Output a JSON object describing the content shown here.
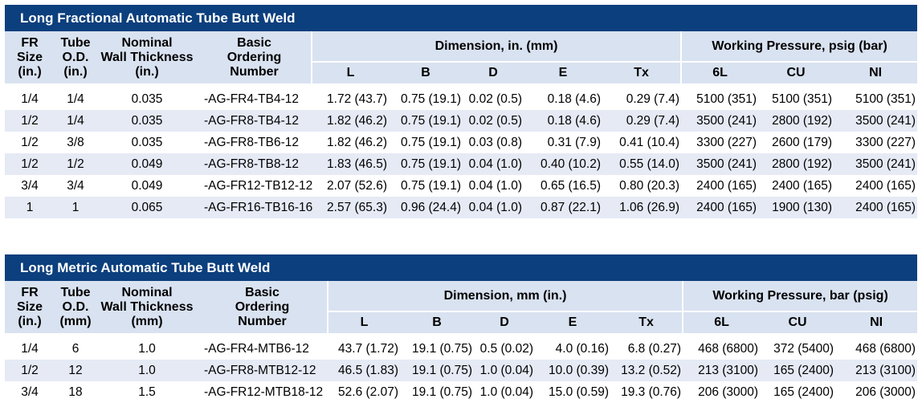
{
  "tables": [
    {
      "title": "Long Fractional Automatic Tube Butt Weld",
      "headers": {
        "fr_size": [
          "FR",
          "Size",
          "(in.)"
        ],
        "tube_od": [
          "Tube",
          "O.D.",
          "(in.)"
        ],
        "wall": [
          "Nominal",
          "Wall Thickness",
          "(in.)"
        ],
        "ordering": [
          "Basic",
          "Ordering",
          "Number"
        ],
        "dimension_group": "Dimension, in. (mm)",
        "pressure_group": "Working Pressure, psig (bar)",
        "dims": [
          "L",
          "B",
          "D",
          "E",
          "Tx"
        ],
        "pressures": [
          "6L",
          "CU",
          "NI"
        ]
      },
      "rows": [
        {
          "fr": "1/4",
          "od": "1/4",
          "wall": "0.035",
          "order": "-AG-FR4-TB4-12",
          "L": "1.72 (43.7)",
          "B": "0.75 (19.1)",
          "D": "0.02 (0.5)",
          "E": "0.18 (4.6)",
          "Tx": "0.29 (7.4)",
          "p6L": "5100 (351)",
          "CU": "5100 (351)",
          "NI": "5100 (351)"
        },
        {
          "fr": "1/2",
          "od": "1/4",
          "wall": "0.035",
          "order": "-AG-FR8-TB4-12",
          "L": "1.82 (46.2)",
          "B": "0.75 (19.1)",
          "D": "0.02 (0.5)",
          "E": "0.18 (4.6)",
          "Tx": "0.29 (7.4)",
          "p6L": "3500 (241)",
          "CU": "2800 (192)",
          "NI": "3500 (241)"
        },
        {
          "fr": "1/2",
          "od": "3/8",
          "wall": "0.035",
          "order": "-AG-FR8-TB6-12",
          "L": "1.82 (46.2)",
          "B": "0.75 (19.1)",
          "D": "0.03 (0.8)",
          "E": "0.31 (7.9)",
          "Tx": "0.41 (10.4)",
          "p6L": "3300 (227)",
          "CU": "2600 (179)",
          "NI": "3300 (227)"
        },
        {
          "fr": "1/2",
          "od": "1/2",
          "wall": "0.049",
          "order": "-AG-FR8-TB8-12",
          "L": "1.83 (46.5)",
          "B": "0.75 (19.1)",
          "D": "0.04 (1.0)",
          "E": "0.40 (10.2)",
          "Tx": "0.55 (14.0)",
          "p6L": "3500 (241)",
          "CU": "2800 (192)",
          "NI": "3500 (241)"
        },
        {
          "fr": "3/4",
          "od": "3/4",
          "wall": "0.049",
          "order": "-AG-FR12-TB12-12",
          "L": "2.07 (52.6)",
          "B": "0.75 (19.1)",
          "D": "0.04 (1.0)",
          "E": "0.65 (16.5)",
          "Tx": "0.80 (20.3)",
          "p6L": "2400 (165)",
          "CU": "2400 (165)",
          "NI": "2400 (165)"
        },
        {
          "fr": "1",
          "od": "1",
          "wall": "0.065",
          "order": "-AG-FR16-TB16-16",
          "L": "2.57 (65.3)",
          "B": "0.96 (24.4)",
          "D": "0.04 (1.0)",
          "E": "0.87 (22.1)",
          "Tx": "1.06 (26.9)",
          "p6L": "2400 (165)",
          "CU": "1900 (130)",
          "NI": "2400 (165)"
        }
      ]
    },
    {
      "title": "Long Metric Automatic Tube Butt Weld",
      "headers": {
        "fr_size": [
          "FR",
          "Size",
          "(in.)"
        ],
        "tube_od": [
          "Tube",
          "O.D.",
          "(mm)"
        ],
        "wall": [
          "Nominal",
          "Wall Thickness",
          "(mm)"
        ],
        "ordering": [
          "Basic",
          "Ordering",
          "Number"
        ],
        "dimension_group": "Dimension, mm (in.)",
        "pressure_group": "Working Pressure, bar (psig)",
        "dims": [
          "L",
          "B",
          "D",
          "E",
          "Tx"
        ],
        "pressures": [
          "6L",
          "CU",
          "NI"
        ]
      },
      "rows": [
        {
          "fr": "1/4",
          "od": "6",
          "wall": "1.0",
          "order": "-AG-FR4-MTB6-12",
          "L": "43.7 (1.72)",
          "B": "19.1 (0.75)",
          "D": "0.5 (0.02)",
          "E": "4.0 (0.16)",
          "Tx": "6.8 (0.27)",
          "p6L": "468 (6800)",
          "CU": "372 (5400)",
          "NI": "468 (6800)"
        },
        {
          "fr": "1/2",
          "od": "12",
          "wall": "1.0",
          "order": "-AG-FR8-MTB12-12",
          "L": "46.5 (1.83)",
          "B": "19.1 (0.75)",
          "D": "1.0 (0.04)",
          "E": "10.0 (0.39)",
          "Tx": "13.2 (0.52)",
          "p6L": "213 (3100)",
          "CU": "165 (2400)",
          "NI": "213 (3100)"
        },
        {
          "fr": "3/4",
          "od": "18",
          "wall": "1.5",
          "order": "-AG-FR12-MTB18-12",
          "L": "52.6 (2.07)",
          "B": "19.1 (0.75)",
          "D": "1.0 (0.04)",
          "E": "15.0 (0.59)",
          "Tx": "19.3 (0.76)",
          "p6L": "206 (3000)",
          "CU": "165 (2400)",
          "NI": "206 (3000)"
        }
      ]
    }
  ]
}
